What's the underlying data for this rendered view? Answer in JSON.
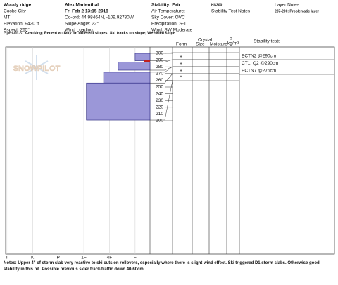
{
  "header": {
    "columns": [
      [
        "Woody ridge",
        "Cooke City",
        "MT",
        "Elevation: 9420 ft",
        "Aspect: 265°"
      ],
      [
        "Alex Marienthal",
        "Fri Feb 2 13:15 2018",
        "Co-ord: 44.98464N, -109.92780W",
        "Slope Angle: 22°",
        "Wind Loading:"
      ],
      [
        "Stability: Fair",
        "Air Temperature:",
        "Sky Cover: OVC",
        "Precipitation: S-1",
        "Wind: SW Moderate"
      ]
    ],
    "hs": "HS300",
    "stability_test_notes": "Stability Test Notes",
    "layer_notes_title": "Layer Notes",
    "layer_notes": [
      "287-290: Problematic layer"
    ],
    "specifics_label": "Specifics:",
    "specifics": "Cracking; Recent activity on different slopes; Ski tracks on slope; We skied slope"
  },
  "profile": {
    "xlim": [
      6.05,
      0.42
    ],
    "hardness_ticks": [
      {
        "value": 6,
        "label": "I"
      },
      {
        "value": 5,
        "label": "K"
      },
      {
        "value": 4,
        "label": "P"
      },
      {
        "value": 3,
        "label": "1F"
      },
      {
        "value": 2,
        "label": "4F"
      },
      {
        "value": 1,
        "label": "F"
      }
    ],
    "ylim": [
      0,
      309
    ],
    "yticks": [
      200,
      210,
      220,
      230,
      240,
      250,
      260,
      270,
      280,
      290,
      300
    ],
    "layers": [
      {
        "top": 300,
        "bottom": 289,
        "hardness": 1.0,
        "form": "+"
      },
      {
        "top": 287,
        "bottom": 275,
        "hardness": 1.66,
        "form": "+"
      },
      {
        "top": 272,
        "bottom": 256,
        "hardness": 2.23,
        "form": "+"
      },
      {
        "top": 256,
        "bottom": 201,
        "hardness": 2.9,
        "form": "*"
      }
    ],
    "problem_layer": {
      "top": 290,
      "bottom": 287
    },
    "watermark": "SNOWPILOT"
  },
  "column_headers": {
    "form": "Form",
    "crystal": "Crystal",
    "size": "Size",
    "moisture": "Moisture",
    "rho": "ρ",
    "density_unit": "kg/m³",
    "stability_tests": "Stability tests"
  },
  "stability_tests": [
    "ECTN2 @290cm",
    "CT1, Q2 @290cm",
    "ECTN7 @275cm"
  ],
  "notes_label": "Notes:",
  "notes": "Upper 4\" of storm slab very reactive to ski cuts on rollovers, especially where there is slight wind effect. Ski triggered D1 storm slabs. Otherwise good stability in this pit. Possible previous skier track/traffic down 40-60cm."
}
